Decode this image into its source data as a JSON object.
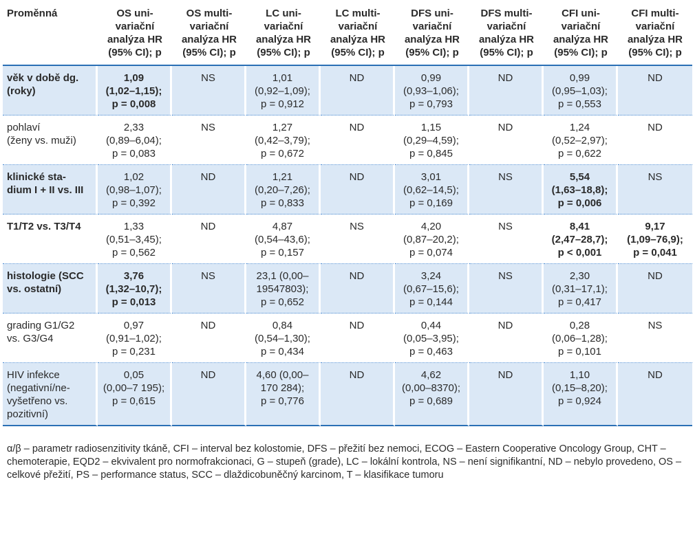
{
  "headers": [
    [
      "Proměnná"
    ],
    [
      "OS uni-",
      "variační",
      "analýza HR",
      "(95% CI); p"
    ],
    [
      "OS multi-",
      "variační",
      "analýza HR",
      "(95% CI); p"
    ],
    [
      "LC uni-",
      "variační",
      "analýza HR",
      "(95% CI); p"
    ],
    [
      "LC multi-",
      "variační",
      "analýza HR",
      "(95% CI); p"
    ],
    [
      "DFS uni-",
      "variační",
      "analýza HR",
      "(95% CI); p"
    ],
    [
      "DFS multi-",
      "variační",
      "analýza HR",
      "(95% CI); p"
    ],
    [
      "CFI uni-",
      "variační",
      "analýza HR",
      "(95% CI); p"
    ],
    [
      "CFI multi-",
      "variační",
      "analýza HR",
      "(95% CI); p"
    ]
  ],
  "rows": [
    {
      "label": [
        "věk v době dg.",
        "(roky)"
      ],
      "label_bold": true,
      "cells": [
        {
          "lines": [
            "1,09",
            "(1,02–1,15);",
            "p = 0,008"
          ],
          "bold": true
        },
        {
          "lines": [
            "NS"
          ],
          "bold": false
        },
        {
          "lines": [
            "1,01",
            "(0,92–1,09);",
            "p = 0,912"
          ],
          "bold": false
        },
        {
          "lines": [
            "ND"
          ],
          "bold": false
        },
        {
          "lines": [
            "0,99",
            "(0,93–1,06);",
            "p = 0,793"
          ],
          "bold": false
        },
        {
          "lines": [
            "ND"
          ],
          "bold": false
        },
        {
          "lines": [
            "0,99",
            "(0,95–1,03);",
            "p = 0,553"
          ],
          "bold": false
        },
        {
          "lines": [
            "ND"
          ],
          "bold": false
        }
      ]
    },
    {
      "label": [
        "pohlaví",
        "(ženy vs. muži)"
      ],
      "label_bold": false,
      "cells": [
        {
          "lines": [
            "2,33",
            "(0,89–6,04);",
            "p = 0,083"
          ],
          "bold": false
        },
        {
          "lines": [
            "NS"
          ],
          "bold": false
        },
        {
          "lines": [
            "1,27",
            "(0,42–3,79);",
            "p = 0,672"
          ],
          "bold": false
        },
        {
          "lines": [
            "ND"
          ],
          "bold": false
        },
        {
          "lines": [
            "1,15",
            "(0,29–4,59);",
            "p = 0,845"
          ],
          "bold": false
        },
        {
          "lines": [
            "ND"
          ],
          "bold": false
        },
        {
          "lines": [
            "1,24",
            "(0,52–2,97);",
            "p = 0,622"
          ],
          "bold": false
        },
        {
          "lines": [
            "ND"
          ],
          "bold": false
        }
      ]
    },
    {
      "label": [
        "klinické sta-",
        "dium I + II vs. III"
      ],
      "label_bold": true,
      "cells": [
        {
          "lines": [
            "1,02",
            "(0,98–1,07);",
            "p = 0,392"
          ],
          "bold": false
        },
        {
          "lines": [
            "ND"
          ],
          "bold": false
        },
        {
          "lines": [
            "1,21",
            "(0,20–7,26);",
            "p = 0,833"
          ],
          "bold": false
        },
        {
          "lines": [
            "ND"
          ],
          "bold": false
        },
        {
          "lines": [
            "3,01",
            "(0,62–14,5);",
            "p = 0,169"
          ],
          "bold": false
        },
        {
          "lines": [
            "NS"
          ],
          "bold": false
        },
        {
          "lines": [
            "5,54",
            "(1,63–18,8);",
            "p = 0,006"
          ],
          "bold": true
        },
        {
          "lines": [
            "NS"
          ],
          "bold": false
        }
      ]
    },
    {
      "label": [
        "T1/T2 vs. T3/T4"
      ],
      "label_bold": true,
      "cells": [
        {
          "lines": [
            "1,33",
            "(0,51–3,45);",
            "p = 0,562"
          ],
          "bold": false
        },
        {
          "lines": [
            "ND"
          ],
          "bold": false
        },
        {
          "lines": [
            "4,87",
            "(0,54–43,6);",
            "p = 0,157"
          ],
          "bold": false
        },
        {
          "lines": [
            "NS"
          ],
          "bold": false
        },
        {
          "lines": [
            "4,20",
            "(0,87–20,2);",
            "p = 0,074"
          ],
          "bold": false
        },
        {
          "lines": [
            "NS"
          ],
          "bold": false
        },
        {
          "lines": [
            "8,41",
            "(2,47–28,7);",
            "p < 0,001"
          ],
          "bold": true
        },
        {
          "lines": [
            "9,17",
            "(1,09–76,9);",
            "p = 0,041"
          ],
          "bold": true
        }
      ]
    },
    {
      "label": [
        "histologie (SCC",
        "vs. ostatní)"
      ],
      "label_bold": true,
      "cells": [
        {
          "lines": [
            "3,76",
            "(1,32–10,7);",
            "p = 0,013"
          ],
          "bold": true
        },
        {
          "lines": [
            "NS"
          ],
          "bold": false
        },
        {
          "lines": [
            "23,1 (0,00–",
            "19547803);",
            "p = 0,652"
          ],
          "bold": false
        },
        {
          "lines": [
            "ND"
          ],
          "bold": false
        },
        {
          "lines": [
            "3,24",
            "(0,67–15,6);",
            "p = 0,144"
          ],
          "bold": false
        },
        {
          "lines": [
            "NS"
          ],
          "bold": false
        },
        {
          "lines": [
            "2,30",
            "(0,31–17,1);",
            "p = 0,417"
          ],
          "bold": false
        },
        {
          "lines": [
            "ND"
          ],
          "bold": false
        }
      ]
    },
    {
      "label": [
        "grading G1/G2",
        "vs. G3/G4"
      ],
      "label_bold": false,
      "cells": [
        {
          "lines": [
            "0,97",
            "(0,91–1,02);",
            "p = 0,231"
          ],
          "bold": false
        },
        {
          "lines": [
            "ND"
          ],
          "bold": false
        },
        {
          "lines": [
            "0,84",
            "(0,54–1,30);",
            "p = 0,434"
          ],
          "bold": false
        },
        {
          "lines": [
            "ND"
          ],
          "bold": false
        },
        {
          "lines": [
            "0,44",
            "(0,05–3,95);",
            "p = 0,463"
          ],
          "bold": false
        },
        {
          "lines": [
            "ND"
          ],
          "bold": false
        },
        {
          "lines": [
            "0,28",
            "(0,06–1,28);",
            "p = 0,101"
          ],
          "bold": false
        },
        {
          "lines": [
            "NS"
          ],
          "bold": false
        }
      ]
    },
    {
      "label": [
        "HIV infekce",
        "(negativní/ne-",
        "vyšetřeno vs.",
        "pozitivní)"
      ],
      "label_bold": false,
      "cells": [
        {
          "lines": [
            "0,05",
            "(0,00–7 195);",
            "p = 0,615"
          ],
          "bold": false
        },
        {
          "lines": [
            "ND"
          ],
          "bold": false
        },
        {
          "lines": [
            "4,60 (0,00–",
            "170 284);",
            "p = 0,776"
          ],
          "bold": false
        },
        {
          "lines": [
            "ND"
          ],
          "bold": false
        },
        {
          "lines": [
            "4,62",
            "(0,00–8370);",
            "p = 0,689"
          ],
          "bold": false
        },
        {
          "lines": [
            "ND"
          ],
          "bold": false
        },
        {
          "lines": [
            "1,10",
            "(0,15–8,20);",
            "p = 0,924"
          ],
          "bold": false
        },
        {
          "lines": [
            "ND"
          ],
          "bold": false
        }
      ]
    }
  ],
  "footnote": "α/β – parametr radiosenzitivity tkáně, CFI – interval bez kolostomie, DFS – přežití bez nemoci, ECOG – Eastern Cooperative Oncology Group, CHT – chemoterapie, EQD2 – ekvivalent pro normofrakcionaci, G – stupeň (grade), LC – lokální kontrola, NS – není signifikantní, ND – nebylo provedeno, OS – celkové přežití, PS – performance status, SCC – dlaždicobuněčný karcinom, T – klasifikace tumoru",
  "colors": {
    "shaded_row": "#dbe8f6",
    "rule": "#2a6fb5",
    "dotted_rule": "#4a8ad1",
    "text": "#2a2a2a"
  }
}
